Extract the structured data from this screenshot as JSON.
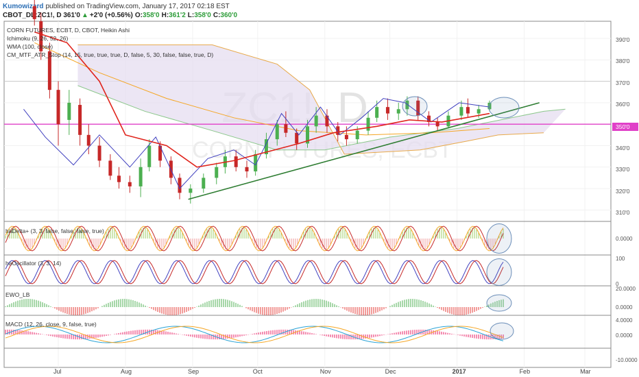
{
  "header": {
    "author": "Kumowizard",
    "published_text": "published on TradingView.com, January 17, 2017 02:18 EST",
    "symbol_text": "CBOT_DL:ZC1!, D 361'0",
    "change_text": "+2'0 (+0.56%)",
    "ohlc": [
      {
        "k": "O:",
        "v": "358'0"
      },
      {
        "k": "H:",
        "v": "361'2"
      },
      {
        "k": "L:",
        "v": "358'0"
      },
      {
        "k": "C:",
        "v": "360'0"
      }
    ]
  },
  "legend": [
    "CORN FUTURES, ECBT, D, CBOT, Heikin Ashi",
    "Ichimoku (9, 26, 52, 26)",
    "WMA (100, close)",
    "CM_MTF_ATR_Stop (14, 15, true, true, true, D, false, 5, 30, false, false, true, D)"
  ],
  "watermark": {
    "symbol": "ZC1!, D",
    "name": "CORN FUTURES, ECBT"
  },
  "price_axis": {
    "labels": [
      "390'0",
      "380'0",
      "370'0",
      "360'0",
      "340'0",
      "330'0",
      "320'0",
      "310'0"
    ],
    "current": "350'0"
  },
  "panels": [
    {
      "title": "haDelta+ (3, 3, false, false, false, true)",
      "labels": [
        "0.0000"
      ]
    },
    {
      "title": "haOscillator (3, 3, 14)",
      "labels": [
        "100",
        "0"
      ]
    },
    {
      "title": "EWO_LB",
      "labels": [
        "20.0000",
        "0.0000"
      ]
    },
    {
      "title": "MACD (12, 26, close, 9, false, true)",
      "labels": [
        "4.0000",
        "0.0000",
        "-10.0000"
      ]
    }
  ],
  "time_axis": [
    {
      "label": "Jul",
      "bold": false
    },
    {
      "label": "Aug",
      "bold": false
    },
    {
      "label": "Sep",
      "bold": false
    },
    {
      "label": "Oct",
      "bold": false
    },
    {
      "label": "Nov",
      "bold": false
    },
    {
      "label": "Dec",
      "bold": false
    },
    {
      "label": "2017",
      "bold": true
    },
    {
      "label": "Feb",
      "bold": false
    },
    {
      "label": "Mar",
      "bold": false
    }
  ],
  "colors": {
    "up": "#4caf50",
    "down": "#c62828",
    "tenkan": "#3f3fbf",
    "kijun": "#e0241c",
    "chikou": "#4caf50",
    "wma": "#f5a623",
    "cloud": "#e6ddf0",
    "trend": "#2e7d32",
    "hline": "#e040c8",
    "ellipse": "#6a8db8"
  },
  "chart_data": {
    "type": "candlestick",
    "title": "CORN FUTURES, ECBT, D, CBOT, Heikin Ashi",
    "symbol": "ZC1!",
    "timeframe": "D",
    "ylim": [
      305,
      398
    ],
    "y_ticks": [
      310,
      320,
      330,
      340,
      350,
      360,
      370,
      380,
      390
    ],
    "current_price": 350,
    "candles": [
      {
        "date": "2016-06-20",
        "o": 405,
        "h": 412,
        "l": 396,
        "c": 399
      },
      {
        "date": "2016-06-23",
        "o": 398,
        "h": 402,
        "l": 380,
        "c": 384
      },
      {
        "date": "2016-06-27",
        "o": 384,
        "h": 388,
        "l": 362,
        "c": 366
      },
      {
        "date": "2016-07-01",
        "o": 366,
        "h": 370,
        "l": 340,
        "c": 350
      },
      {
        "date": "2016-07-06",
        "o": 352,
        "h": 366,
        "l": 345,
        "c": 360
      },
      {
        "date": "2016-07-11",
        "o": 359,
        "h": 362,
        "l": 340,
        "c": 345
      },
      {
        "date": "2016-07-15",
        "o": 345,
        "h": 350,
        "l": 336,
        "c": 340
      },
      {
        "date": "2016-07-20",
        "o": 340,
        "h": 344,
        "l": 330,
        "c": 333
      },
      {
        "date": "2016-07-25",
        "o": 333,
        "h": 336,
        "l": 324,
        "c": 326
      },
      {
        "date": "2016-07-29",
        "o": 326,
        "h": 330,
        "l": 320,
        "c": 323
      },
      {
        "date": "2016-08-03",
        "o": 323,
        "h": 326,
        "l": 318,
        "c": 321
      },
      {
        "date": "2016-08-08",
        "o": 321,
        "h": 334,
        "l": 316,
        "c": 330
      },
      {
        "date": "2016-08-12",
        "o": 330,
        "h": 343,
        "l": 328,
        "c": 340
      },
      {
        "date": "2016-08-17",
        "o": 340,
        "h": 342,
        "l": 330,
        "c": 333
      },
      {
        "date": "2016-08-22",
        "o": 333,
        "h": 335,
        "l": 322,
        "c": 325
      },
      {
        "date": "2016-08-26",
        "o": 325,
        "h": 327,
        "l": 315,
        "c": 318
      },
      {
        "date": "2016-08-31",
        "o": 318,
        "h": 322,
        "l": 313,
        "c": 320
      },
      {
        "date": "2016-09-06",
        "o": 320,
        "h": 327,
        "l": 318,
        "c": 325
      },
      {
        "date": "2016-09-12",
        "o": 325,
        "h": 332,
        "l": 322,
        "c": 330
      },
      {
        "date": "2016-09-16",
        "o": 330,
        "h": 338,
        "l": 327,
        "c": 335
      },
      {
        "date": "2016-09-21",
        "o": 335,
        "h": 338,
        "l": 328,
        "c": 330
      },
      {
        "date": "2016-09-26",
        "o": 330,
        "h": 333,
        "l": 325,
        "c": 328
      },
      {
        "date": "2016-09-30",
        "o": 328,
        "h": 338,
        "l": 326,
        "c": 336
      },
      {
        "date": "2016-10-05",
        "o": 336,
        "h": 346,
        "l": 334,
        "c": 343
      },
      {
        "date": "2016-10-10",
        "o": 343,
        "h": 352,
        "l": 340,
        "c": 350
      },
      {
        "date": "2016-10-14",
        "o": 350,
        "h": 356,
        "l": 344,
        "c": 346
      },
      {
        "date": "2016-10-19",
        "o": 346,
        "h": 348,
        "l": 338,
        "c": 341
      },
      {
        "date": "2016-10-24",
        "o": 341,
        "h": 352,
        "l": 339,
        "c": 349
      },
      {
        "date": "2016-10-28",
        "o": 349,
        "h": 358,
        "l": 346,
        "c": 354
      },
      {
        "date": "2016-11-02",
        "o": 354,
        "h": 357,
        "l": 346,
        "c": 349
      },
      {
        "date": "2016-11-07",
        "o": 349,
        "h": 351,
        "l": 342,
        "c": 345
      },
      {
        "date": "2016-11-11",
        "o": 345,
        "h": 349,
        "l": 340,
        "c": 343
      },
      {
        "date": "2016-11-16",
        "o": 343,
        "h": 349,
        "l": 341,
        "c": 347
      },
      {
        "date": "2016-11-21",
        "o": 347,
        "h": 356,
        "l": 345,
        "c": 353
      },
      {
        "date": "2016-11-25",
        "o": 353,
        "h": 361,
        "l": 351,
        "c": 358
      },
      {
        "date": "2016-11-30",
        "o": 358,
        "h": 362,
        "l": 352,
        "c": 355
      },
      {
        "date": "2016-12-05",
        "o": 355,
        "h": 360,
        "l": 352,
        "c": 357
      },
      {
        "date": "2016-12-09",
        "o": 357,
        "h": 363,
        "l": 354,
        "c": 361
      },
      {
        "date": "2016-12-14",
        "o": 361,
        "h": 363,
        "l": 352,
        "c": 354
      },
      {
        "date": "2016-12-19",
        "o": 354,
        "h": 356,
        "l": 349,
        "c": 351
      },
      {
        "date": "2016-12-23",
        "o": 351,
        "h": 353,
        "l": 347,
        "c": 349
      },
      {
        "date": "2016-12-28",
        "o": 349,
        "h": 356,
        "l": 348,
        "c": 354
      },
      {
        "date": "2017-01-03",
        "o": 354,
        "h": 361,
        "l": 352,
        "c": 358
      },
      {
        "date": "2017-01-06",
        "o": 358,
        "h": 362,
        "l": 353,
        "c": 355
      },
      {
        "date": "2017-01-11",
        "o": 355,
        "h": 359,
        "l": 353,
        "c": 357
      },
      {
        "date": "2017-01-16",
        "o": 357,
        "h": 361,
        "l": 356,
        "c": 360
      }
    ],
    "tenkan": [
      {
        "date": "2016-06-15",
        "v": 357
      },
      {
        "date": "2016-06-25",
        "v": 344
      },
      {
        "date": "2016-07-08",
        "v": 331
      },
      {
        "date": "2016-07-20",
        "v": 345
      },
      {
        "date": "2016-08-03",
        "v": 330
      },
      {
        "date": "2016-08-15",
        "v": 344
      },
      {
        "date": "2016-08-26",
        "v": 320
      },
      {
        "date": "2016-09-08",
        "v": 334
      },
      {
        "date": "2016-09-20",
        "v": 338
      },
      {
        "date": "2016-09-30",
        "v": 331
      },
      {
        "date": "2016-10-12",
        "v": 355
      },
      {
        "date": "2016-10-20",
        "v": 345
      },
      {
        "date": "2016-10-30",
        "v": 358
      },
      {
        "date": "2016-11-08",
        "v": 345
      },
      {
        "date": "2016-11-18",
        "v": 353
      },
      {
        "date": "2016-11-28",
        "v": 362
      },
      {
        "date": "2016-12-08",
        "v": 360
      },
      {
        "date": "2016-12-20",
        "v": 351
      },
      {
        "date": "2017-01-02",
        "v": 360
      },
      {
        "date": "2017-01-16",
        "v": 358
      }
    ],
    "kijun": [
      {
        "date": "2016-06-20",
        "v": 393
      },
      {
        "date": "2016-07-05",
        "v": 388
      },
      {
        "date": "2016-07-20",
        "v": 370
      },
      {
        "date": "2016-08-01",
        "v": 345
      },
      {
        "date": "2016-08-20",
        "v": 340
      },
      {
        "date": "2016-09-03",
        "v": 330
      },
      {
        "date": "2016-09-20",
        "v": 333
      },
      {
        "date": "2016-10-05",
        "v": 337
      },
      {
        "date": "2016-10-20",
        "v": 341
      },
      {
        "date": "2016-11-05",
        "v": 346
      },
      {
        "date": "2016-11-25",
        "v": 349
      },
      {
        "date": "2016-12-10",
        "v": 352
      },
      {
        "date": "2016-12-25",
        "v": 351
      },
      {
        "date": "2017-01-16",
        "v": 355
      }
    ],
    "wma100": [
      {
        "date": "2016-06-20",
        "v": 388
      },
      {
        "date": "2016-07-20",
        "v": 374
      },
      {
        "date": "2016-08-20",
        "v": 362
      },
      {
        "date": "2016-09-20",
        "v": 353
      },
      {
        "date": "2016-10-20",
        "v": 347
      },
      {
        "date": "2016-11-20",
        "v": 345
      },
      {
        "date": "2016-12-20",
        "v": 346
      },
      {
        "date": "2017-01-16",
        "v": 348
      }
    ],
    "senkou_a": [
      {
        "date": "2016-07-10",
        "v": 368
      },
      {
        "date": "2016-08-10",
        "v": 356
      },
      {
        "date": "2016-09-10",
        "v": 347
      },
      {
        "date": "2016-10-10",
        "v": 338
      },
      {
        "date": "2016-11-01",
        "v": 338
      },
      {
        "date": "2016-12-01",
        "v": 344
      },
      {
        "date": "2017-01-01",
        "v": 348
      },
      {
        "date": "2017-02-10",
        "v": 356
      },
      {
        "date": "2017-02-20",
        "v": 357
      }
    ],
    "senkou_b": [
      {
        "date": "2016-07-10",
        "v": 387
      },
      {
        "date": "2016-09-10",
        "v": 387
      },
      {
        "date": "2016-10-10",
        "v": 378
      },
      {
        "date": "2016-10-25",
        "v": 366
      },
      {
        "date": "2016-11-10",
        "v": 336
      },
      {
        "date": "2016-12-15",
        "v": 338
      },
      {
        "date": "2017-01-05",
        "v": 342
      },
      {
        "date": "2017-01-20",
        "v": 345
      },
      {
        "date": "2017-02-10",
        "v": 346
      }
    ],
    "trendline": {
      "from": {
        "date": "2016-08-30",
        "v": 315
      },
      "to": {
        "date": "2017-02-08",
        "v": 360
      }
    },
    "horizontal_line": 350,
    "x_ticks": [
      "Jul",
      "Aug",
      "Sep",
      "Oct",
      "Nov",
      "Dec",
      "2017",
      "Feb",
      "Mar"
    ]
  }
}
